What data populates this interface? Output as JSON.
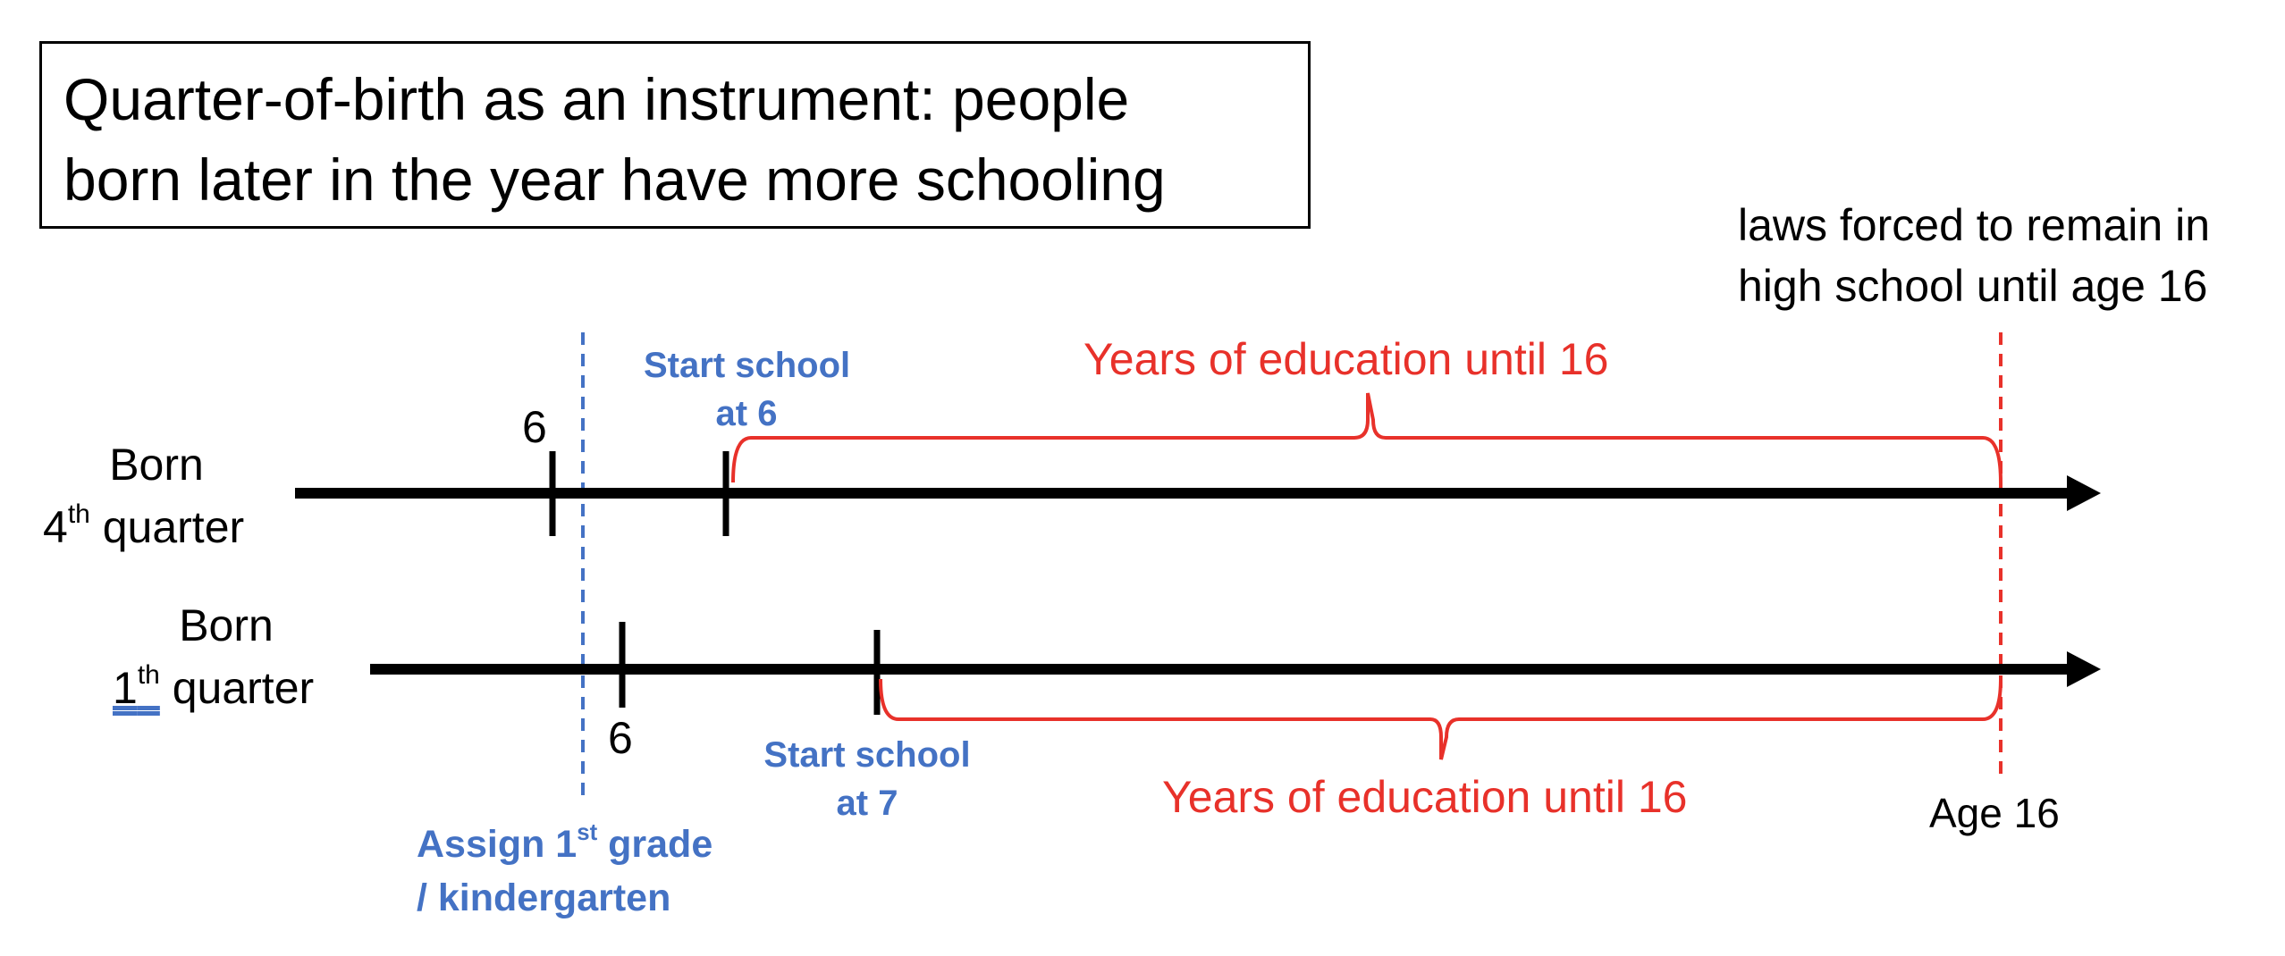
{
  "title": {
    "line1": "Quarter-of-birth as an instrument: people",
    "line2": "born later in the year have more schooling"
  },
  "law_note": {
    "line1": "laws forced to remain in",
    "line2": "high school until age 16"
  },
  "rows": {
    "q4": {
      "label_line1": "Born",
      "label_num": "4",
      "label_sup": "th",
      "label_rest": " quarter",
      "age_tick": "6",
      "start_line1": "Start school",
      "start_line2": "at 6",
      "education_label": "Years of education until 16"
    },
    "q1": {
      "label_line1": "Born",
      "label_num": "1",
      "label_sup": "th",
      "label_rest": " quarter",
      "age_tick": "6",
      "start_line1": "Start school",
      "start_line2": "at 7",
      "education_label": "Years of education until 16"
    }
  },
  "assign": {
    "line1_pre": "Assign 1",
    "line1_sup": "st",
    "line1_post": " grade",
    "line2": "/ kindergarten"
  },
  "age16_label": "Age 16",
  "colors": {
    "blue": "#4472C4",
    "red": "#E8312A",
    "black": "#000000"
  }
}
